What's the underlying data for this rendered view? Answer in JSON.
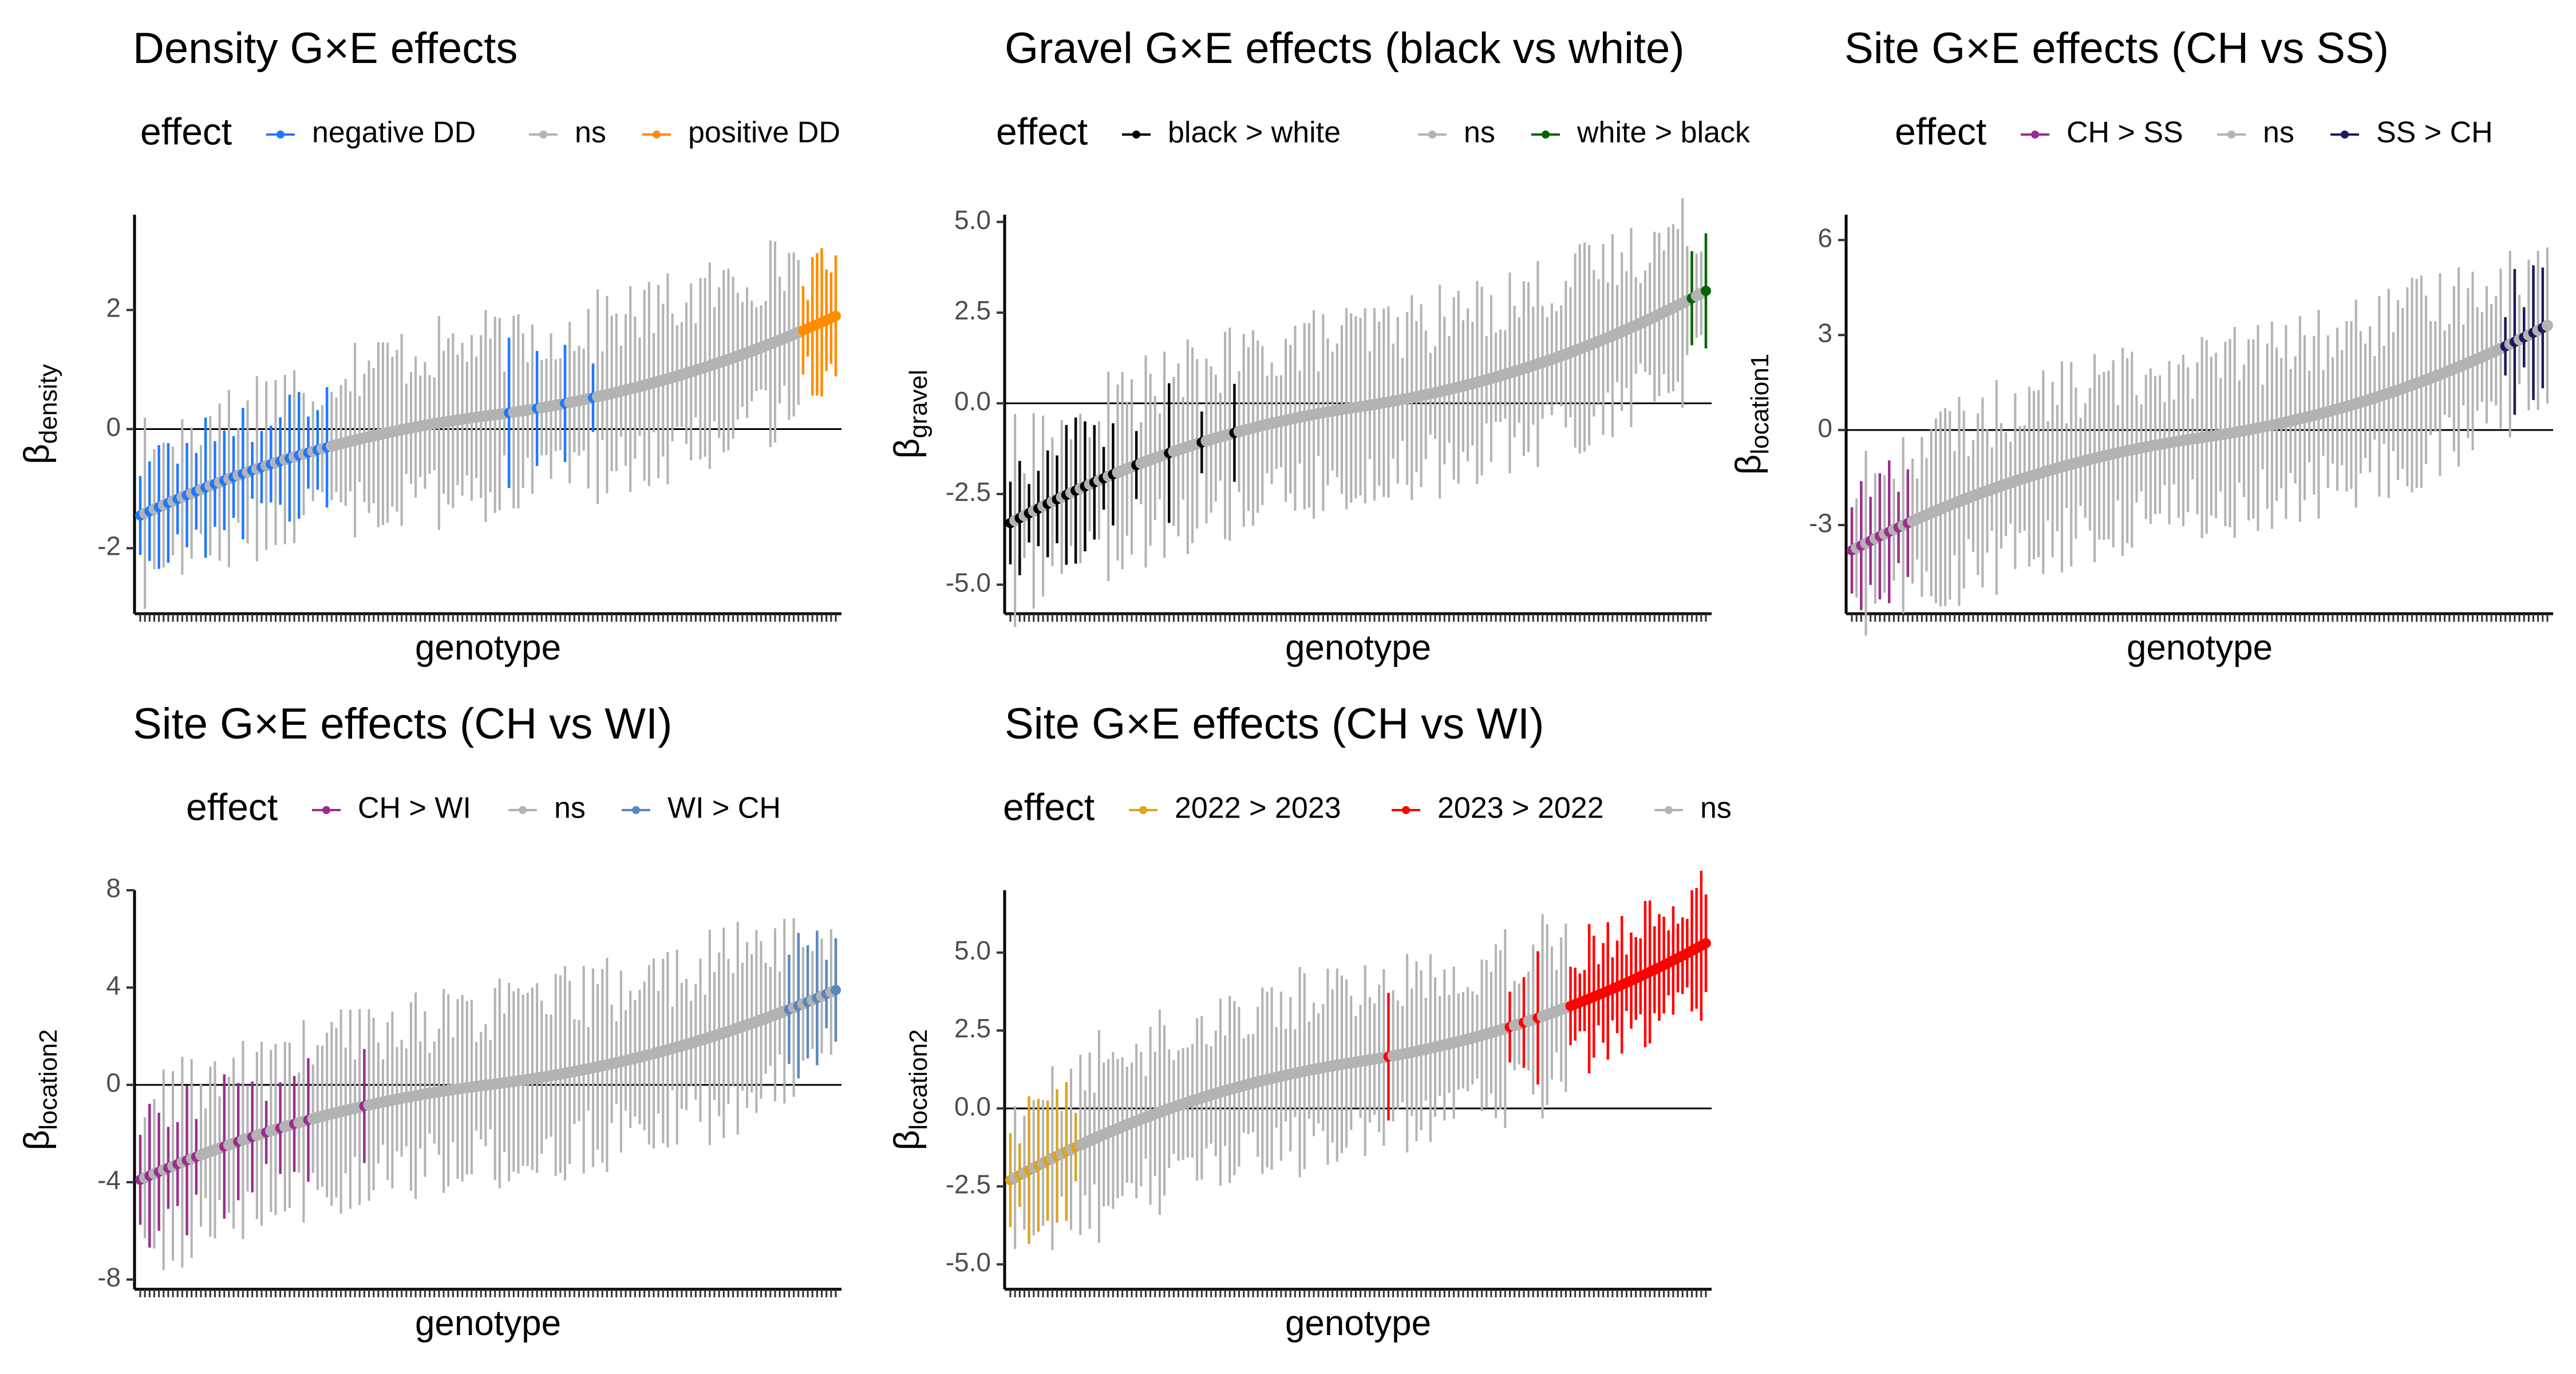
{
  "chart_data": [
    {
      "id": "density",
      "type": "scatter",
      "title": "Density G×E effects",
      "xlabel": "genotype",
      "ylabel_main": "β",
      "ylabel_sub": "density",
      "legend_title": "effect",
      "legend_position": "top",
      "legend": [
        {
          "label": "negative DD",
          "color": "#1f78ff"
        },
        {
          "label": "ns",
          "color": "#b3b3b3"
        },
        {
          "label": "positive DD",
          "color": "#ff8c00"
        }
      ],
      "ylim": [
        -3.1,
        3.6
      ],
      "yticks": [
        -2,
        0,
        2
      ],
      "ytick_labels": [
        "-2",
        "0",
        "2"
      ],
      "n": 150,
      "estimate_start": -1.45,
      "estimate_end": 1.9,
      "colored_segments": [
        {
          "from": 0,
          "to": 40,
          "legend": 0,
          "step": 2
        },
        {
          "from": 79,
          "to": 97,
          "legend": 0,
          "step": 6
        },
        {
          "from": 142,
          "to": 149,
          "legend": 2,
          "step": 1
        }
      ]
    },
    {
      "id": "gravel",
      "type": "scatter",
      "title": "Gravel G×E effects (black vs white)",
      "xlabel": "genotype",
      "ylabel_main": "β",
      "ylabel_sub": "gravel",
      "legend_title": "effect",
      "legend_position": "top",
      "legend": [
        {
          "label": "black > white",
          "color": "#000000"
        },
        {
          "label": "ns",
          "color": "#b3b3b3"
        },
        {
          "label": "white > black",
          "color": "#006400"
        }
      ],
      "ylim": [
        -5.8,
        5.2
      ],
      "yticks": [
        -5,
        -2.5,
        0,
        2.5,
        5
      ],
      "ytick_labels": [
        "-5.0",
        "-2.5",
        "0.0",
        "2.5",
        "5.0"
      ],
      "n": 150,
      "estimate_start": -3.3,
      "estimate_end": 3.1,
      "colored_segments": [
        {
          "from": 0,
          "to": 22,
          "legend": 0,
          "step": 2
        },
        {
          "from": 27,
          "to": 48,
          "legend": 0,
          "step": 7
        },
        {
          "from": 146,
          "to": 149,
          "legend": 2,
          "step": 3
        }
      ]
    },
    {
      "id": "location1",
      "type": "scatter",
      "title": "Site G×E effects (CH vs SS)",
      "xlabel": "genotype",
      "ylabel_main": "β",
      "ylabel_sub": "location1",
      "legend_title": "effect",
      "legend_position": "top",
      "legend": [
        {
          "label": "CH > SS",
          "color": "#9b2d8e"
        },
        {
          "label": "ns",
          "color": "#b3b3b3"
        },
        {
          "label": "SS > CH",
          "color": "#1a1a5e"
        }
      ],
      "ylim": [
        -5.8,
        6.8
      ],
      "yticks": [
        -3,
        0,
        3,
        6
      ],
      "ytick_labels": [
        "-3",
        "0",
        "3",
        "6"
      ],
      "n": 150,
      "estimate_start": -3.8,
      "estimate_end": 3.3,
      "colored_segments": [
        {
          "from": 0,
          "to": 12,
          "legend": 0,
          "step": 2
        },
        {
          "from": 140,
          "to": 149,
          "legend": 2,
          "step": 2
        }
      ]
    },
    {
      "id": "location2_a",
      "type": "scatter",
      "title": "Site G×E effects (CH vs WI)",
      "xlabel": "genotype",
      "ylabel_main": "β",
      "ylabel_sub": "location2",
      "legend_title": "effect",
      "legend_position": "top",
      "legend": [
        {
          "label": "CH > WI",
          "color": "#9b2d8e"
        },
        {
          "label": "ns",
          "color": "#b3b3b3"
        },
        {
          "label": "WI > CH",
          "color": "#5a86bf"
        }
      ],
      "ylim": [
        -8.4,
        8.0
      ],
      "yticks": [
        -8,
        -4,
        0,
        4,
        8
      ],
      "ytick_labels": [
        "-8",
        "-4",
        "0",
        "4",
        "8"
      ],
      "n": 150,
      "estimate_start": -3.9,
      "estimate_end": 3.9,
      "colored_segments": [
        {
          "from": 0,
          "to": 12,
          "legend": 0,
          "step": 2
        },
        {
          "from": 18,
          "to": 36,
          "legend": 0,
          "step": 3
        },
        {
          "from": 48,
          "to": 48,
          "legend": 0,
          "step": 1
        },
        {
          "from": 139,
          "to": 149,
          "legend": 2,
          "step": 2
        }
      ]
    },
    {
      "id": "location2_b",
      "type": "scatter",
      "title": "Site G×E effects (CH vs WI)",
      "xlabel": "genotype",
      "ylabel_main": "β",
      "ylabel_sub": "location2",
      "legend_title": "effect",
      "legend_position": "top",
      "legend": [
        {
          "label": "2022 > 2023",
          "color": "#daa520"
        },
        {
          "label": "2023 > 2022",
          "color": "#ff0000"
        },
        {
          "label": "ns",
          "color": "#b3b3b3"
        }
      ],
      "ylim": [
        -5.8,
        7.0
      ],
      "yticks": [
        -5,
        -2.5,
        0,
        2.5,
        5
      ],
      "ytick_labels": [
        "-5.0",
        "-2.5",
        "0.0",
        "2.5",
        "5.0"
      ],
      "n": 150,
      "estimate_start": -2.3,
      "estimate_end": 5.3,
      "colored_segments": [
        {
          "from": 0,
          "to": 14,
          "legend": 0,
          "step": 2
        },
        {
          "from": 81,
          "to": 81,
          "legend": 1,
          "step": 1
        },
        {
          "from": 107,
          "to": 113,
          "legend": 1,
          "step": 3
        },
        {
          "from": 120,
          "to": 149,
          "legend": 1,
          "step": 1
        }
      ]
    }
  ]
}
